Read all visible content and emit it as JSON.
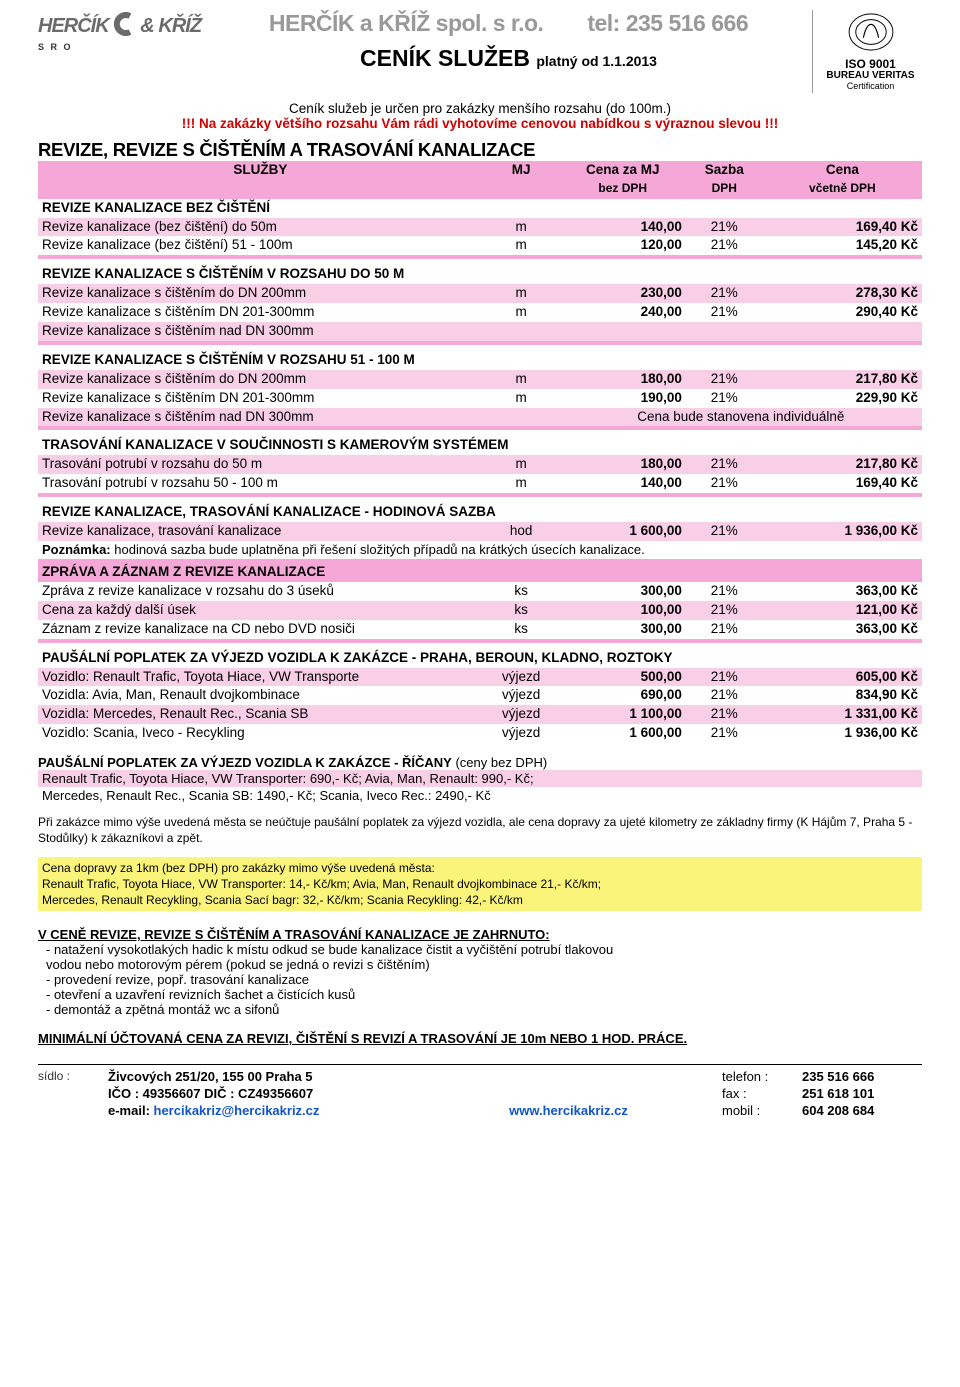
{
  "header": {
    "logo_text_1": "HERČÍK",
    "logo_text_amp": "&",
    "logo_text_2": "KŘÍŽ",
    "logo_sro": "S R O",
    "company": "HERČÍK a KŘÍŽ spol. s r.o.",
    "tel_label": "tel: 235 516 666",
    "title": "CENÍK SLUŽEB",
    "title_sub": "platný od 1.1.2013",
    "cert_iso": "ISO 9001",
    "cert_bv": "BUREAU VERITAS",
    "cert_txt": "Certification",
    "intro1": "Ceník služeb je určen pro zakázky menšího rozsahu (do 100m.)",
    "intro2": "!!! Na zakázky většího rozsahu Vám rádi vyhotovíme cenovou nabídkou s výraznou slevou !!!"
  },
  "section_main": "REVIZE, REVIZE S ČIŠTĚNÍM A TRASOVÁNÍ KANALIZACE",
  "thead": {
    "sluzby": "SLUŽBY",
    "mj": "MJ",
    "cena_za_mj": "Cena za MJ",
    "sazba": "Sazba",
    "cena": "Cena",
    "bez_dph": "bez DPH",
    "dph": "DPH",
    "vcetne_dph": "včetně DPH"
  },
  "groups": [
    {
      "title": "REVIZE KANALIZACE BEZ ČIŠTĚNÍ",
      "style": "inline",
      "rows": [
        {
          "desc": "Revize kanalizace (bez čištění) do 50m",
          "mj": "m",
          "base": "140,00",
          "vat": "21%",
          "tot": "169,40 Kč",
          "cls": "pink-light"
        },
        {
          "desc": "Revize kanalizace (bez čištění) 51 - 100m",
          "mj": "m",
          "base": "120,00",
          "vat": "21%",
          "tot": "145,20 Kč"
        }
      ]
    },
    {
      "title": "REVIZE KANALIZACE S ČIŠTĚNÍM V ROZSAHU DO 50 M",
      "style": "block",
      "rows": [
        {
          "desc": "Revize kanalizace s čištěním do DN 200mm",
          "mj": "m",
          "base": "230,00",
          "vat": "21%",
          "tot": "278,30 Kč",
          "cls": "pink-light"
        },
        {
          "desc": "Revize kanalizace s čištěním DN 201-300mm",
          "mj": "m",
          "base": "240,00",
          "vat": "21%",
          "tot": "290,40 Kč"
        },
        {
          "desc": "Revize kanalizace s čištěním nad DN 300mm",
          "mj": "",
          "base": "",
          "vat": "",
          "tot": "",
          "cls": "pink-light"
        }
      ]
    },
    {
      "title": "REVIZE KANALIZACE S ČIŠTĚNÍM V ROZSAHU 51 - 100 M",
      "style": "block",
      "rows": [
        {
          "desc": "Revize kanalizace s čištěním do DN 200mm",
          "mj": "m",
          "base": "180,00",
          "vat": "21%",
          "tot": "217,80 Kč",
          "cls": "pink-light"
        },
        {
          "desc": "Revize kanalizace s čištěním DN 201-300mm",
          "mj": "m",
          "base": "190,00",
          "vat": "21%",
          "tot": "229,90 Kč"
        },
        {
          "desc": "Revize kanalizace s čištěním nad DN 300mm",
          "mj": "",
          "base": "",
          "vat": "",
          "tot": "Cena bude stanovena individuálně",
          "cls": "pink-light",
          "tot_plain": true,
          "tot_span": true
        }
      ]
    },
    {
      "title": "TRASOVÁNÍ KANALIZACE V SOUČINNOSTI S KAMEROVÝM SYSTÉMEM",
      "style": "block",
      "rows": [
        {
          "desc": "Trasování potrubí v rozsahu do 50 m",
          "mj": "m",
          "base": "180,00",
          "vat": "21%",
          "tot": "217,80 Kč",
          "cls": "pink-light"
        },
        {
          "desc": "Trasování potrubí v rozsahu 50 - 100 m",
          "mj": "m",
          "base": "140,00",
          "vat": "21%",
          "tot": "169,40 Kč"
        }
      ]
    },
    {
      "title": "REVIZE KANALIZACE, TRASOVÁNÍ KANALIZACE - HODINOVÁ SAZBA",
      "style": "block",
      "rows": [
        {
          "desc": "Revize kanalizace, trasování kanalizace",
          "mj": "hod",
          "base": "1 600,00",
          "vat": "21%",
          "tot": "1 936,00 Kč",
          "cls": "pink-light"
        }
      ],
      "note": "Poznámka: hodinová sazba bude uplatněna při řešení složitých případů na krátkých úsecích kanalizace."
    },
    {
      "title": "ZPRÁVA A ZÁZNAM Z REVIZE KANALIZACE",
      "style": "block-pink",
      "rows": [
        {
          "desc": "Zpráva z revize kanalizace v rozsahu do 3 úseků",
          "mj": "ks",
          "base": "300,00",
          "vat": "21%",
          "tot": "363,00 Kč"
        },
        {
          "desc": "Cena za každý další úsek",
          "mj": "ks",
          "base": "100,00",
          "vat": "21%",
          "tot": "121,00 Kč",
          "cls": "pink-light"
        },
        {
          "desc": "Záznam z revize kanalizace na CD nebo DVD nosiči",
          "mj": "ks",
          "base": "300,00",
          "vat": "21%",
          "tot": "363,00 Kč"
        }
      ]
    },
    {
      "title": "PAUŠÁLNÍ POPLATEK ZA VÝJEZD VOZIDLA K ZAKÁZCE - PRAHA, BEROUN, KLADNO, ROZTOKY",
      "style": "block",
      "rows": [
        {
          "desc": "Vozidlo: Renault Trafic, Toyota Hiace, VW Transporte",
          "mj": "výjezd",
          "base": "500,00",
          "vat": "21%",
          "tot": "605,00 Kč",
          "cls": "pink-light"
        },
        {
          "desc": "Vozidla: Avia, Man, Renault dvojkombinace",
          "mj": "výjezd",
          "base": "690,00",
          "vat": "21%",
          "tot": "834,90 Kč"
        },
        {
          "desc": "Vozidla: Mercedes, Renault Rec., Scania SB",
          "mj": "výjezd",
          "base": "1 100,00",
          "vat": "21%",
          "tot": "1 331,00 Kč",
          "cls": "pink-light"
        },
        {
          "desc": "Vozidlo: Scania, Iveco - Recykling",
          "mj": "výjezd",
          "base": "1 600,00",
          "vat": "21%",
          "tot": "1 936,00 Kč"
        }
      ]
    }
  ],
  "ricany": {
    "title": "PAUŠÁLNÍ POPLATEK ZA VÝJEZD VOZIDLA K ZAKÁZCE - ŘÍČANY",
    "title_suffix": " (ceny bez DPH)",
    "lines": [
      "Renault Trafic, Toyota Hiace, VW Transporter: 690,- Kč; Avia, Man, Renault: 990,- Kč;",
      "Mercedes, Renault Rec., Scania SB: 1490,- Kč; Scania, Iveco Rec.: 2490,- Kč"
    ]
  },
  "note_outside": "Při zakázce mimo výše uvedená města se neúčtuje paušální poplatek za výjezd vozidla, ale cena dopravy za ujeté kilometry ze základny firmy (K Hájům 7, Praha 5 - Stodůlky) k zákazníkovi a zpět.",
  "yellow_box": {
    "title": "Cena dopravy za 1km (bez DPH) pro zakázky mimo výše uvedená města:",
    "l1": "Renault Trafic, Toyota Hiace, VW Transporter: 14,- Kč/km; Avia, Man, Renault dvojkombinace 21,- Kč/km;",
    "l2": "Mercedes, Renault Recykling, Scania Sací bagr: 32,- Kč/km; Scania Recykling: 42,- Kč/km"
  },
  "included": {
    "title": "V CENĚ REVIZE, REVIZE S ČIŠTĚNÍM A TRASOVÁNÍ KANALIZACE JE ZAHRNUTO:",
    "items": [
      "- natažení vysokotlakých hadic k místu odkud se bude kanalizace čistit a vyčištění potrubí tlakovou",
      "  vodou nebo motorovým pérem (pokud se jedná o revizi s čištěním)",
      "- provedení revize, popř. trasování kanalizace",
      "- otevření a uzavření revizních šachet a čistících kusů",
      "- demontáž a zpětná montáž wc a sifonů"
    ]
  },
  "min_line": "MINIMÁLNÍ ÚČTOVANÁ CENA ZA REVIZI, ČIŠTĚNÍ S REVIZÍ A TRASOVÁNÍ JE 10m NEBO 1 HOD. PRÁCE.",
  "footer": {
    "sidlo_lbl": "sídlo :",
    "addr": "Živcových 251/20, 155 00  Praha 5",
    "ico": "IČO : 49356607   DIČ : CZ49356607",
    "email_lbl": "e-mail: ",
    "email": "hercikakriz@hercikakriz.cz",
    "www": "www.hercikakriz.cz",
    "tel_lbl": "telefon :",
    "tel": "235 516 666",
    "fax_lbl": "fax :",
    "fax": "251 618 101",
    "mob_lbl": "mobil :",
    "mob": "604 208 684"
  },
  "colors": {
    "pink_full": "#f5a8d7",
    "pink_light": "#f9cee7",
    "yellow": "#faf47a",
    "grey_logo": "#999999",
    "red": "#d00000",
    "link_blue": "#1155cc"
  }
}
